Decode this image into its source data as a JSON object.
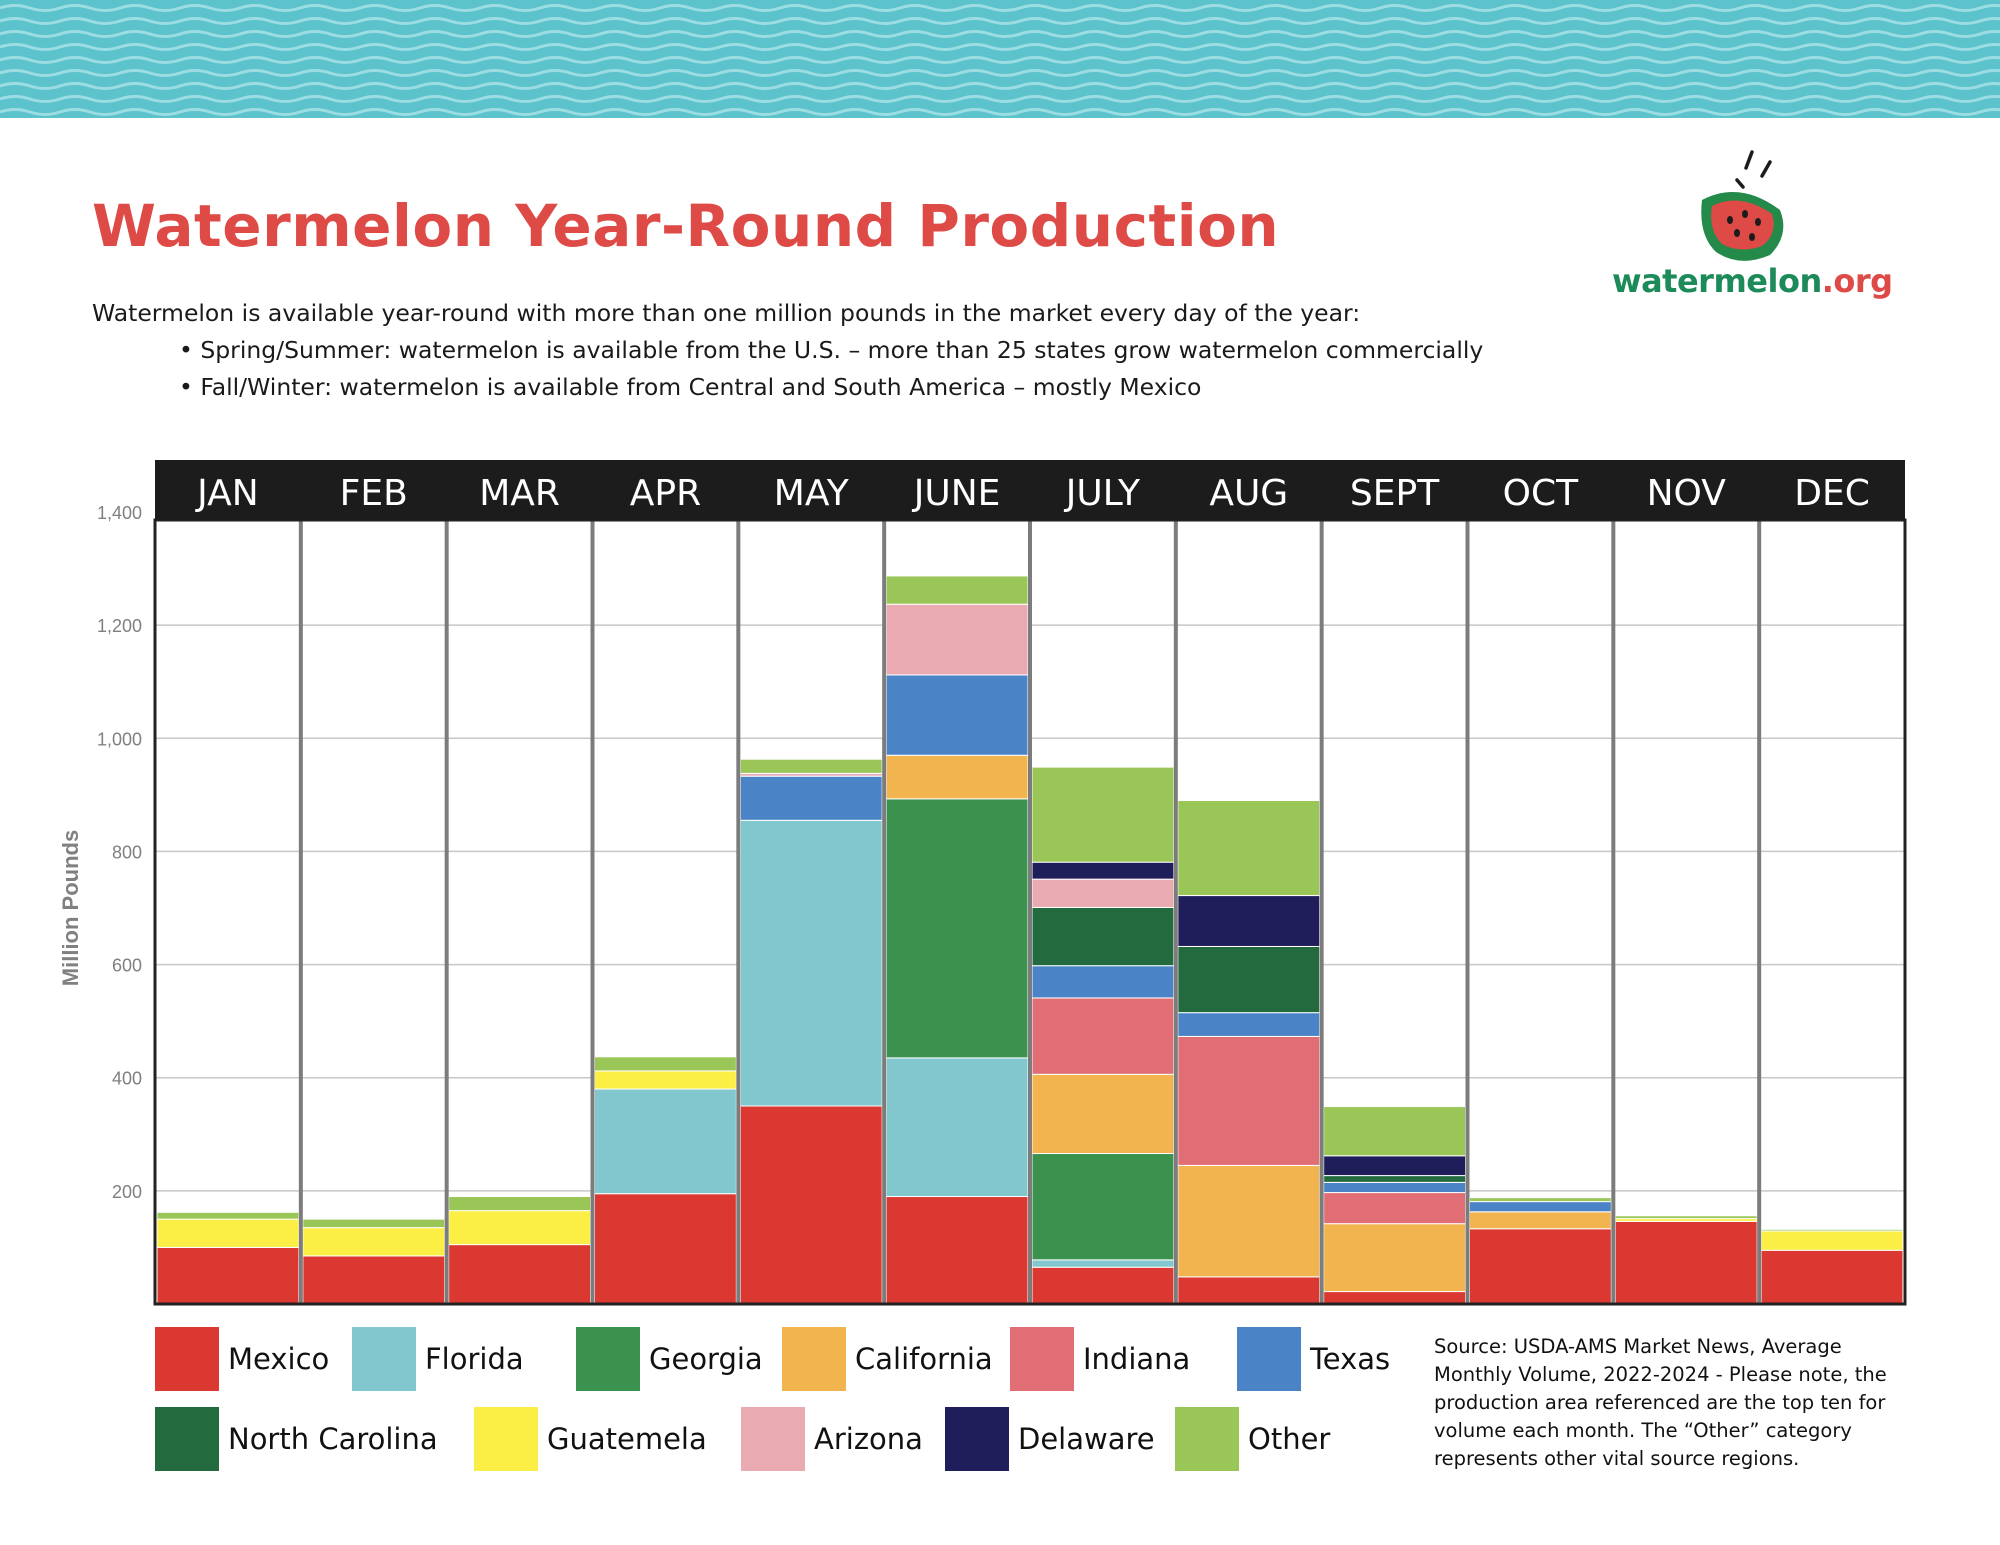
{
  "header": {
    "title": "Watermelon Year-Round Production",
    "intro": "Watermelon is available year-round with more than one million pounds in the market every day of the year:",
    "bullets": [
      "Spring/Summer: watermelon is available from the U.S. – more than 25 states grow watermelon commercially",
      "Fall/Winter: watermelon is available from Central and South America – mostly Mexico"
    ]
  },
  "logo": {
    "name": "watermelon",
    "tld": ".org",
    "icon": "watermelon-slice-icon"
  },
  "colors": {
    "title": "#de4a46",
    "banner": "#5cc2cc",
    "header_bar": "#1c1c1c",
    "Mexico": "#dc3832",
    "Florida": "#82c7ce",
    "Georgia": "#3b924f",
    "California": "#f1b44f",
    "Indiana": "#e06e74",
    "Texas": "#4a84c6",
    "North Carolina": "#236a3f",
    "Guatemela": "#fbee44",
    "Arizona": "#eaaab1",
    "Delaware": "#201e5a",
    "Other": "#9ac557"
  },
  "chart_data": {
    "type": "bar",
    "stacked": true,
    "title": "",
    "xlabel": "",
    "ylabel": "Million Pounds",
    "ylim": [
      0,
      1400
    ],
    "yticks": [
      200,
      400,
      600,
      800,
      1000,
      1200,
      1400
    ],
    "ytick_labels": [
      "200",
      "400",
      "600",
      "800",
      "1,000",
      "1,200",
      "1,400"
    ],
    "categories": [
      "JAN",
      "FEB",
      "MAR",
      "APR",
      "MAY",
      "JUNE",
      "JULY",
      "AUG",
      "SEPT",
      "OCT",
      "NOV",
      "DEC"
    ],
    "series": [
      {
        "name": "Mexico",
        "values": [
          100,
          85,
          105,
          195,
          350,
          190,
          65,
          48,
          22,
          133,
          146,
          95
        ]
      },
      {
        "name": "Florida",
        "values": [
          0,
          0,
          0,
          185,
          505,
          245,
          13,
          0,
          0,
          0,
          0,
          0
        ]
      },
      {
        "name": "Georgia",
        "values": [
          0,
          0,
          0,
          0,
          0,
          458,
          188,
          0,
          0,
          0,
          0,
          0
        ]
      },
      {
        "name": "California",
        "values": [
          0,
          0,
          0,
          0,
          0,
          77,
          140,
          197,
          120,
          30,
          0,
          0
        ]
      },
      {
        "name": "Indiana",
        "values": [
          0,
          0,
          0,
          0,
          0,
          0,
          135,
          228,
          55,
          0,
          0,
          0
        ]
      },
      {
        "name": "Texas",
        "values": [
          0,
          0,
          0,
          0,
          78,
          142,
          57,
          42,
          18,
          18,
          0,
          0
        ]
      },
      {
        "name": "North Carolina",
        "values": [
          0,
          0,
          0,
          0,
          0,
          0,
          103,
          117,
          12,
          0,
          0,
          0
        ]
      },
      {
        "name": "Guatemela",
        "values": [
          50,
          50,
          60,
          32,
          0,
          0,
          0,
          0,
          0,
          0,
          5,
          34
        ]
      },
      {
        "name": "Arizona",
        "values": [
          0,
          0,
          0,
          0,
          5,
          125,
          50,
          0,
          0,
          0,
          0,
          0
        ]
      },
      {
        "name": "Delaware",
        "values": [
          0,
          0,
          0,
          0,
          0,
          0,
          30,
          90,
          35,
          0,
          0,
          0
        ]
      },
      {
        "name": "Other",
        "values": [
          12,
          15,
          25,
          25,
          25,
          50,
          168,
          168,
          87,
          7,
          5,
          3
        ]
      }
    ],
    "legend": {
      "position": "bottom"
    }
  },
  "source_note": "Source: USDA-AMS Market News, Average Monthly Volume, 2022-2024 - Please note, the production area referenced are the top ten for volume each month. The “Other” category represents other vital source regions."
}
